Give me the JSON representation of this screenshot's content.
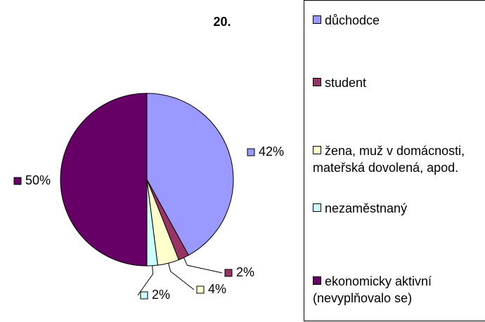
{
  "chart_data": {
    "type": "pie",
    "title": "20.",
    "categories": [
      "důchodce",
      "student",
      "žena, muž v domácnosti, mateřská dovolená, apod.",
      "nezaměstnaný",
      "ekonomicky aktivní (nevyplňovalo se)"
    ],
    "values": [
      42,
      2,
      4,
      2,
      50
    ],
    "value_labels": [
      "42%",
      "2%",
      "4%",
      "2%",
      "50%"
    ],
    "colors": [
      "#9999ff",
      "#993366",
      "#ffffcc",
      "#ccffff",
      "#660066"
    ],
    "legend": "right"
  }
}
